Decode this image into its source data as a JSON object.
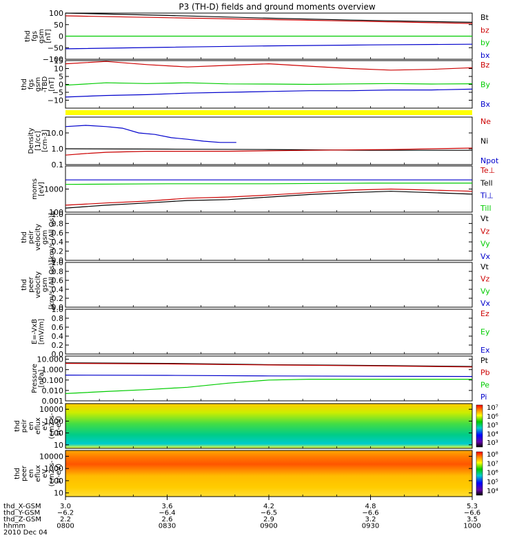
{
  "title": "P3 (TH-D) fields and ground moments overview",
  "colors": {
    "black": "#000000",
    "red": "#cc0000",
    "green": "#00cc00",
    "blue": "#0000cc",
    "yellow": "#ffff00"
  },
  "chart_data": [
    {
      "type": "line",
      "ylabel": [
        "thd",
        "fgs",
        "gsm",
        "[nT]"
      ],
      "ylim": [
        -100,
        100
      ],
      "yticks": [
        "100",
        "50",
        "0",
        "−50",
        "−100"
      ],
      "yvals": [
        100,
        50,
        0,
        -50,
        -100
      ],
      "legend": [
        "Bt",
        "bz",
        "by",
        "bx"
      ],
      "legend_colors": [
        "black",
        "red",
        "green",
        "blue"
      ],
      "series": [
        {
          "name": "Bt",
          "color": "black",
          "x": [
            0,
            0.25,
            0.5,
            0.75,
            1
          ],
          "y": [
            100,
            90,
            78,
            68,
            60
          ]
        },
        {
          "name": "bz",
          "color": "red",
          "x": [
            0,
            0.25,
            0.5,
            0.75,
            1
          ],
          "y": [
            88,
            80,
            72,
            64,
            55
          ]
        },
        {
          "name": "by",
          "color": "green",
          "x": [
            0,
            1
          ],
          "y": [
            0,
            0
          ]
        },
        {
          "name": "bx",
          "color": "blue",
          "x": [
            0,
            0.25,
            0.5,
            0.75,
            1
          ],
          "y": [
            -55,
            -48,
            -42,
            -38,
            -35
          ]
        }
      ]
    },
    {
      "type": "line",
      "ylabel": [
        "thd",
        "fgs",
        "gsm",
        "-TBD",
        "[nT]"
      ],
      "ylim": [
        -15,
        15
      ],
      "yticks": [
        "15",
        "10",
        "5",
        "0",
        "−5",
        "−10"
      ],
      "yvals": [
        15,
        10,
        5,
        0,
        -5,
        -10
      ],
      "legend": [
        "Bz",
        "By",
        "Bx"
      ],
      "legend_colors": [
        "red",
        "green",
        "blue"
      ],
      "series": [
        {
          "name": "Bz",
          "color": "red",
          "x": [
            0,
            0.1,
            0.2,
            0.3,
            0.4,
            0.5,
            0.6,
            0.7,
            0.8,
            0.9,
            1
          ],
          "y": [
            13,
            14.5,
            12.5,
            11,
            12,
            13,
            11.5,
            10,
            9,
            9.5,
            10.5
          ]
        },
        {
          "name": "By",
          "color": "green",
          "x": [
            0,
            0.1,
            0.2,
            0.3,
            0.4,
            0.5,
            0.6,
            0.7,
            0.8,
            0.9,
            1
          ],
          "y": [
            -0.5,
            1,
            0.5,
            1,
            0.3,
            0.2,
            0,
            0.3,
            0.5,
            0.2,
            0.4
          ]
        },
        {
          "name": "Bx",
          "color": "blue",
          "x": [
            0,
            0.1,
            0.2,
            0.3,
            0.4,
            0.5,
            0.6,
            0.7,
            0.8,
            0.9,
            1
          ],
          "y": [
            -8,
            -7,
            -6.5,
            -5.5,
            -5,
            -4.5,
            -4,
            -4,
            -3.5,
            -3.5,
            -3
          ]
        }
      ]
    },
    {
      "type": "line",
      "yscale": "log",
      "ylabel": [
        "Density",
        "[1/cc]",
        "[cm-3]"
      ],
      "ylim": [
        0.1,
        100
      ],
      "yticks": [
        "10.0",
        "1.0",
        "0.1"
      ],
      "yvals": [
        10,
        1,
        0.1
      ],
      "legend": [
        "Ne",
        "Ni",
        "Npot"
      ],
      "legend_colors": [
        "red",
        "black",
        "blue"
      ],
      "series": [
        {
          "name": "Npot",
          "color": "blue",
          "x": [
            0,
            0.05,
            0.1,
            0.14,
            0.18,
            0.22,
            0.26,
            0.3,
            0.34,
            0.38,
            0.42
          ],
          "y": [
            25,
            30,
            25,
            20,
            10,
            8,
            5,
            4,
            3,
            2.5,
            2.5
          ]
        },
        {
          "name": "Ni",
          "color": "black",
          "x": [
            0,
            0.25,
            0.5,
            0.75,
            1
          ],
          "y": [
            1.0,
            0.95,
            0.9,
            0.8,
            0.8
          ]
        },
        {
          "name": "Ne",
          "color": "red",
          "x": [
            0,
            0.05,
            0.1,
            0.2,
            0.4,
            0.6,
            0.8,
            1
          ],
          "y": [
            0.4,
            0.5,
            0.6,
            0.7,
            0.7,
            0.8,
            0.9,
            1.1
          ]
        }
      ]
    },
    {
      "type": "line",
      "yscale": "log",
      "ylabel": [
        "moms",
        "[eV]"
      ],
      "ylim": [
        100,
        10000
      ],
      "yticks": [
        "1000",
        "100"
      ],
      "yvals": [
        1000,
        100
      ],
      "legend": [
        "Te⊥",
        "Tell",
        "Ti⊥",
        "Till"
      ],
      "legend_colors": [
        "red",
        "black",
        "blue",
        "green"
      ],
      "series": [
        {
          "name": "Ti⊥",
          "color": "blue",
          "x": [
            0,
            1
          ],
          "y": [
            2500,
            2500
          ]
        },
        {
          "name": "Till",
          "color": "green",
          "x": [
            0,
            0.25,
            0.5,
            0.75,
            1
          ],
          "y": [
            1600,
            1700,
            1700,
            1800,
            1800
          ]
        },
        {
          "name": "Te⊥",
          "color": "red",
          "x": [
            0,
            0.1,
            0.2,
            0.3,
            0.4,
            0.5,
            0.6,
            0.7,
            0.8,
            0.9,
            1
          ],
          "y": [
            200,
            250,
            300,
            400,
            450,
            550,
            700,
            900,
            1000,
            900,
            800
          ]
        },
        {
          "name": "Tell",
          "color": "black",
          "x": [
            0,
            0.1,
            0.2,
            0.3,
            0.4,
            0.5,
            0.6,
            0.7,
            0.8,
            0.9,
            1
          ],
          "y": [
            150,
            200,
            250,
            320,
            350,
            450,
            580,
            700,
            800,
            700,
            600
          ]
        }
      ]
    },
    {
      "type": "line",
      "ylabel": [
        "thd",
        "peir",
        "velocity",
        "gsm",
        "[km/s (All Qs)]"
      ],
      "ylim": [
        0,
        1
      ],
      "yticks": [
        "1.0",
        "0.8",
        "0.6",
        "0.4",
        "0.2",
        "0.0"
      ],
      "yvals": [
        1.0,
        0.8,
        0.6,
        0.4,
        0.2,
        0.0
      ],
      "legend": [
        "Vt",
        "Vz",
        "Vy",
        "Vx"
      ],
      "legend_colors": [
        "black",
        "red",
        "green",
        "blue"
      ],
      "series": []
    },
    {
      "type": "line",
      "ylabel": [
        "thd",
        "peer",
        "velocity",
        "gsm",
        "[km/s (All Qs)]"
      ],
      "ylim": [
        0,
        1
      ],
      "yticks": [
        "1.0",
        "0.8",
        "0.6",
        "0.4",
        "0.2",
        "0.0"
      ],
      "yvals": [
        1.0,
        0.8,
        0.6,
        0.4,
        0.2,
        0.0
      ],
      "legend": [
        "Vt",
        "Vz",
        "Vy",
        "Vx"
      ],
      "legend_colors": [
        "black",
        "red",
        "green",
        "blue"
      ],
      "series": []
    },
    {
      "type": "line",
      "ylabel": [
        "E=-VxB",
        "[mV/m]"
      ],
      "ylim": [
        0,
        1
      ],
      "yticks": [
        "1.0",
        "0.8",
        "0.6",
        "0.4",
        "0.2",
        "0.0"
      ],
      "yvals": [
        1.0,
        0.8,
        0.6,
        0.4,
        0.2,
        0.0
      ],
      "legend": [
        "Ez",
        "Ey",
        "Ex"
      ],
      "legend_colors": [
        "red",
        "green",
        "blue"
      ],
      "series": []
    },
    {
      "type": "line",
      "yscale": "log",
      "ylabel": [
        "Pressure",
        "[nPa]"
      ],
      "ylim": [
        0.001,
        20
      ],
      "yticks": [
        "10.000",
        "1.000",
        "0.100",
        "0.010",
        "0.001"
      ],
      "yvals": [
        10,
        1,
        0.1,
        0.01,
        0.001
      ],
      "legend": [
        "Pt",
        "Pb",
        "Pe",
        "Pi"
      ],
      "legend_colors": [
        "black",
        "red",
        "green",
        "blue"
      ],
      "series": [
        {
          "name": "Pt",
          "color": "black",
          "x": [
            0,
            0.25,
            0.5,
            0.75,
            1
          ],
          "y": [
            4.5,
            4.0,
            3.0,
            2.5,
            2.0
          ]
        },
        {
          "name": "Pb",
          "color": "red",
          "x": [
            0,
            0.25,
            0.5,
            0.75,
            1
          ],
          "y": [
            4.0,
            3.5,
            2.8,
            2.3,
            1.8
          ]
        },
        {
          "name": "Pi",
          "color": "blue",
          "x": [
            0,
            0.25,
            0.5,
            0.75,
            1
          ],
          "y": [
            0.3,
            0.28,
            0.25,
            0.23,
            0.22
          ]
        },
        {
          "name": "Pe",
          "color": "green",
          "x": [
            0,
            0.1,
            0.2,
            0.3,
            0.4,
            0.5,
            0.6,
            0.7,
            1
          ],
          "y": [
            0.005,
            0.008,
            0.012,
            0.02,
            0.05,
            0.1,
            0.12,
            0.12,
            0.12
          ]
        }
      ]
    },
    {
      "type": "heatmap",
      "ylabel": [
        "thd",
        "peir",
        "en",
        "eflux",
        "eV",
        "(cm2-s-",
        "sr-eV)"
      ],
      "yscale": "log",
      "ylim": [
        5,
        30000
      ],
      "yticks": [
        "10000",
        "1000",
        "100",
        "10"
      ],
      "yvals": [
        10000,
        1000,
        100,
        10
      ],
      "colorbar_ticks": [
        "10⁷",
        "10⁶",
        "10⁵",
        "10⁴",
        "10³"
      ]
    },
    {
      "type": "heatmap",
      "ylabel": [
        "thd",
        "peer",
        "en",
        "eflux",
        "eV",
        "(cm2-s-",
        "sr-eV)"
      ],
      "yscale": "log",
      "ylim": [
        5,
        30000
      ],
      "yticks": [
        "10000",
        "1000",
        "100",
        "10"
      ],
      "yvals": [
        10000,
        1000,
        100,
        10
      ],
      "colorbar_ticks": [
        "10⁸",
        "10⁷",
        "10⁶",
        "10⁵",
        "10⁴"
      ]
    }
  ],
  "xaxis": {
    "row_labels": [
      "thd_X-GSM",
      "thd_Y-GSM",
      "thd_Z-GSM",
      "hhmm",
      "2010 Dec 04"
    ],
    "ticks": [
      {
        "frac": 0,
        "values": [
          "3.0",
          "−6.2",
          "2.2",
          "0800"
        ]
      },
      {
        "frac": 0.25,
        "values": [
          "3.6",
          "−6.4",
          "2.6",
          "0830"
        ]
      },
      {
        "frac": 0.5,
        "values": [
          "4.2",
          "−6.5",
          "2.9",
          "0900"
        ]
      },
      {
        "frac": 0.75,
        "values": [
          "4.8",
          "−6.6",
          "3.2",
          "0930"
        ]
      },
      {
        "frac": 1,
        "values": [
          "5.3",
          "−6.6",
          "3.5",
          "1000"
        ]
      }
    ]
  }
}
